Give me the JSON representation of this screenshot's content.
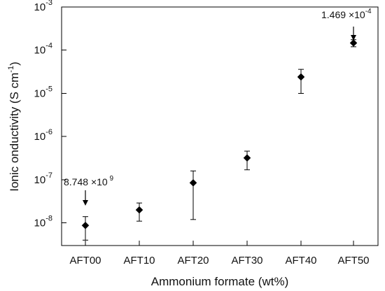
{
  "chart_data": {
    "type": "scatter",
    "xlabel": "Ammonium formate (wt%)",
    "ylabel": "Ionic onductivity (S cm",
    "ylabel_superscript": "-1",
    "ylabel_suffix": ")",
    "categories": [
      "AFT00",
      "AFT10",
      "AFT20",
      "AFT30",
      "AFT40",
      "AFT50"
    ],
    "y_scale": "log",
    "ylim": [
      3e-09,
      0.001
    ],
    "y_ticks": [
      {
        "value": 1e-08,
        "base": "10",
        "exp": "-8"
      },
      {
        "value": 1e-07,
        "base": "10",
        "exp": "-7"
      },
      {
        "value": 1e-06,
        "base": "10",
        "exp": "-6"
      },
      {
        "value": 1e-05,
        "base": "10",
        "exp": "-5"
      },
      {
        "value": 0.0001,
        "base": "10",
        "exp": "-4"
      },
      {
        "value": 0.001,
        "base": "10",
        "exp": "-3"
      }
    ],
    "series": [
      {
        "values": [
          8.748e-09,
          2e-08,
          8.5e-08,
          3.2e-07,
          2.4e-05,
          0.0001469
        ],
        "error_low": [
          4e-09,
          1.1e-08,
          1.2e-08,
          1.7e-07,
          1e-05,
          0.00012
        ],
        "error_high": [
          1.4e-08,
          2.9e-08,
          1.6e-07,
          4.6e-07,
          3.6e-05,
          0.000175
        ]
      }
    ],
    "grid": false,
    "legend": "none",
    "annotations": [
      {
        "index": 0,
        "mantissa": "8.748 ",
        "times": "×",
        "base": "10",
        "exp": " 9",
        "position": "above-left"
      },
      {
        "index": 5,
        "mantissa": "1.469 ",
        "times": "×",
        "base": "10",
        "exp": "-4",
        "position": "above-left"
      }
    ]
  }
}
